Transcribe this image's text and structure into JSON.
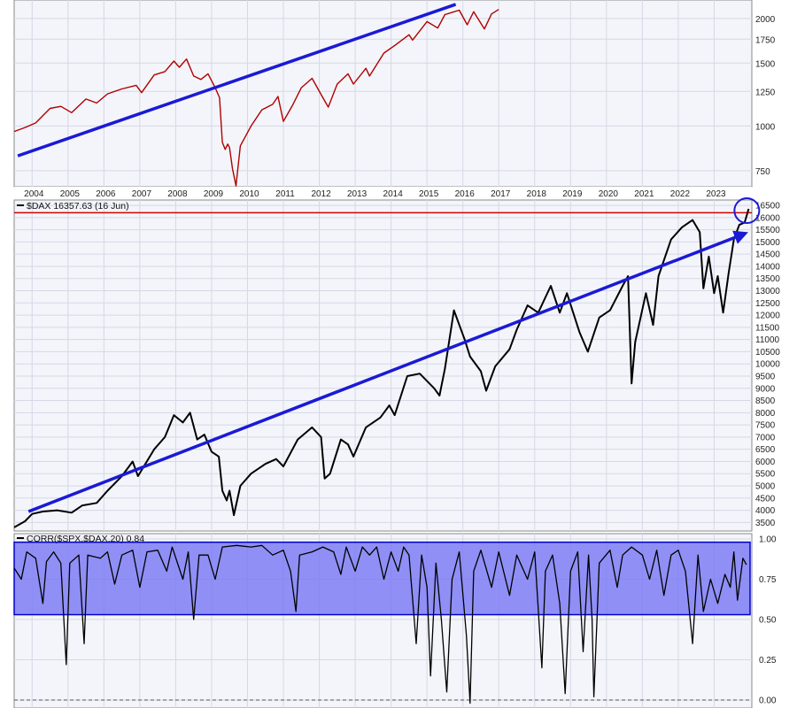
{
  "colors": {
    "panel_bg": "#f4f5fa",
    "grid": "#d5d8e6",
    "axis": "#8a8a8a",
    "spx_line": "#b00000",
    "spx_overlay": "#2b2b2b",
    "dax_line": "#000000",
    "trend": "#1a1ad6",
    "resistance": "#d00000",
    "corr_band": "#7d7df5",
    "corr_band_border": "#0000cc",
    "corr_line": "#000000"
  },
  "chart_data": [
    {
      "id": "spx-panel",
      "type": "line",
      "title": "",
      "series": [
        {
          "values": [
            [
              2003.0,
              965
            ],
            [
              2003.3,
              990
            ],
            [
              2003.6,
              1020
            ],
            [
              2004.0,
              1120
            ],
            [
              2004.3,
              1135
            ],
            [
              2004.6,
              1090
            ],
            [
              2005.0,
              1190
            ],
            [
              2005.3,
              1160
            ],
            [
              2005.6,
              1230
            ],
            [
              2006.0,
              1270
            ],
            [
              2006.4,
              1300
            ],
            [
              2006.55,
              1240
            ],
            [
              2006.9,
              1390
            ],
            [
              2007.2,
              1420
            ],
            [
              2007.45,
              1520
            ],
            [
              2007.6,
              1460
            ],
            [
              2007.8,
              1540
            ],
            [
              2008.0,
              1380
            ],
            [
              2008.2,
              1350
            ],
            [
              2008.4,
              1400
            ],
            [
              2008.6,
              1280
            ],
            [
              2008.72,
              1200
            ],
            [
              2008.8,
              900
            ],
            [
              2008.88,
              860
            ],
            [
              2008.95,
              890
            ],
            [
              2009.0,
              870
            ],
            [
              2009.08,
              760
            ],
            [
              2009.18,
              680
            ],
            [
              2009.3,
              880
            ],
            [
              2009.6,
              1000
            ],
            [
              2009.9,
              1110
            ],
            [
              2010.2,
              1150
            ],
            [
              2010.35,
              1210
            ],
            [
              2010.5,
              1030
            ],
            [
              2010.75,
              1140
            ],
            [
              2011.0,
              1280
            ],
            [
              2011.3,
              1360
            ],
            [
              2011.6,
              1200
            ],
            [
              2011.75,
              1130
            ],
            [
              2012.0,
              1310
            ],
            [
              2012.3,
              1400
            ],
            [
              2012.45,
              1310
            ],
            [
              2012.8,
              1450
            ],
            [
              2012.9,
              1380
            ],
            [
              2013.3,
              1600
            ],
            [
              2013.6,
              1680
            ],
            [
              2014.0,
              1800
            ],
            [
              2014.1,
              1740
            ],
            [
              2014.5,
              1960
            ],
            [
              2014.8,
              1880
            ],
            [
              2015.0,
              2050
            ],
            [
              2015.4,
              2110
            ],
            [
              2015.62,
              1920
            ],
            [
              2015.8,
              2090
            ],
            [
              2016.1,
              1870
            ],
            [
              2016.3,
              2060
            ],
            [
              2016.5,
              2120
            ]
          ]
        }
      ],
      "x_ticks": [
        "2004",
        "2005",
        "2006",
        "2007",
        "2008",
        "2009",
        "2010",
        "2011",
        "2012",
        "2013",
        "2014",
        "2015",
        "2016",
        "2017",
        "2018",
        "2019",
        "2020",
        "2021",
        "2022",
        "2023"
      ],
      "y_ticks": [
        "2000",
        "1750",
        "1500",
        "1250",
        "1000",
        "750"
      ],
      "y_scale": "log",
      "trendline": [
        [
          2003.1,
          825
        ],
        [
          2015.3,
          2190
        ]
      ],
      "grid": true
    },
    {
      "id": "dax-panel",
      "type": "line",
      "legend": "$DAX 16357.63 (16 Jun)",
      "series": [
        {
          "values": [
            [
              2003.0,
              3300
            ],
            [
              2003.3,
              3550
            ],
            [
              2003.5,
              3850
            ],
            [
              2003.8,
              3950
            ],
            [
              2004.2,
              4000
            ],
            [
              2004.6,
              3900
            ],
            [
              2004.9,
              4200
            ],
            [
              2005.3,
              4300
            ],
            [
              2005.6,
              4800
            ],
            [
              2006.0,
              5400
            ],
            [
              2006.3,
              6000
            ],
            [
              2006.45,
              5400
            ],
            [
              2006.9,
              6500
            ],
            [
              2007.2,
              7000
            ],
            [
              2007.45,
              7900
            ],
            [
              2007.7,
              7600
            ],
            [
              2007.9,
              8000
            ],
            [
              2008.1,
              6900
            ],
            [
              2008.3,
              7100
            ],
            [
              2008.5,
              6400
            ],
            [
              2008.7,
              6200
            ],
            [
              2008.8,
              4800
            ],
            [
              2008.92,
              4400
            ],
            [
              2009.0,
              4800
            ],
            [
              2009.12,
              3800
            ],
            [
              2009.3,
              5000
            ],
            [
              2009.6,
              5500
            ],
            [
              2010.0,
              5900
            ],
            [
              2010.3,
              6100
            ],
            [
              2010.5,
              5800
            ],
            [
              2010.9,
              6900
            ],
            [
              2011.3,
              7400
            ],
            [
              2011.55,
              7000
            ],
            [
              2011.65,
              5300
            ],
            [
              2011.8,
              5500
            ],
            [
              2012.1,
              6900
            ],
            [
              2012.3,
              6700
            ],
            [
              2012.45,
              6200
            ],
            [
              2012.8,
              7400
            ],
            [
              2013.2,
              7800
            ],
            [
              2013.45,
              8300
            ],
            [
              2013.6,
              7900
            ],
            [
              2013.95,
              9500
            ],
            [
              2014.3,
              9600
            ],
            [
              2014.7,
              9000
            ],
            [
              2014.85,
              8700
            ],
            [
              2015.0,
              9800
            ],
            [
              2015.25,
              12200
            ],
            [
              2015.55,
              11000
            ],
            [
              2015.7,
              10300
            ],
            [
              2016.0,
              9700
            ],
            [
              2016.15,
              8900
            ],
            [
              2016.4,
              9900
            ],
            [
              2016.8,
              10600
            ],
            [
              2017.0,
              11400
            ],
            [
              2017.3,
              12400
            ],
            [
              2017.6,
              12100
            ],
            [
              2017.95,
              13200
            ],
            [
              2018.2,
              12100
            ],
            [
              2018.4,
              12900
            ],
            [
              2018.75,
              11300
            ],
            [
              2018.98,
              10500
            ],
            [
              2019.3,
              11900
            ],
            [
              2019.6,
              12200
            ],
            [
              2019.95,
              13200
            ],
            [
              2020.1,
              13600
            ],
            [
              2020.2,
              9200
            ],
            [
              2020.3,
              10900
            ],
            [
              2020.6,
              12900
            ],
            [
              2020.8,
              11600
            ],
            [
              2020.95,
              13600
            ],
            [
              2021.3,
              15100
            ],
            [
              2021.6,
              15600
            ],
            [
              2021.9,
              15900
            ],
            [
              2022.1,
              15400
            ],
            [
              2022.2,
              13100
            ],
            [
              2022.35,
              14400
            ],
            [
              2022.5,
              12900
            ],
            [
              2022.6,
              13600
            ],
            [
              2022.75,
              12100
            ],
            [
              2022.9,
              13700
            ],
            [
              2023.05,
              15100
            ],
            [
              2023.2,
              15700
            ],
            [
              2023.35,
              15800
            ],
            [
              2023.46,
              16357
            ]
          ]
        }
      ],
      "y_ticks": [
        "16500",
        "16000",
        "15500",
        "15000",
        "14500",
        "14000",
        "13500",
        "13000",
        "12500",
        "12000",
        "11500",
        "11000",
        "10500",
        "10000",
        "9500",
        "9000",
        "8500",
        "8000",
        "7500",
        "7000",
        "6500",
        "6000",
        "5500",
        "5000",
        "4500",
        "4000",
        "3500"
      ],
      "resistance_level": 16200,
      "trendline": [
        [
          2003.4,
          3950
        ],
        [
          2023.45,
          15400
        ]
      ],
      "grid": true
    },
    {
      "id": "corr-panel",
      "type": "line",
      "legend": "CORR($SPX,$DAX,20) 0.84",
      "series": [
        {
          "values": [
            [
              2003.0,
              0.82
            ],
            [
              2003.2,
              0.75
            ],
            [
              2003.35,
              0.92
            ],
            [
              2003.6,
              0.88
            ],
            [
              2003.8,
              0.6
            ],
            [
              2003.9,
              0.86
            ],
            [
              2004.1,
              0.92
            ],
            [
              2004.3,
              0.85
            ],
            [
              2004.45,
              0.22
            ],
            [
              2004.55,
              0.85
            ],
            [
              2004.8,
              0.9
            ],
            [
              2004.95,
              0.35
            ],
            [
              2005.05,
              0.9
            ],
            [
              2005.4,
              0.88
            ],
            [
              2005.6,
              0.92
            ],
            [
              2005.8,
              0.72
            ],
            [
              2006.0,
              0.9
            ],
            [
              2006.3,
              0.93
            ],
            [
              2006.5,
              0.7
            ],
            [
              2006.7,
              0.92
            ],
            [
              2007.0,
              0.93
            ],
            [
              2007.25,
              0.8
            ],
            [
              2007.4,
              0.95
            ],
            [
              2007.7,
              0.75
            ],
            [
              2007.85,
              0.92
            ],
            [
              2008.0,
              0.5
            ],
            [
              2008.15,
              0.9
            ],
            [
              2008.4,
              0.9
            ],
            [
              2008.6,
              0.75
            ],
            [
              2008.8,
              0.95
            ],
            [
              2009.2,
              0.96
            ],
            [
              2009.6,
              0.95
            ],
            [
              2009.9,
              0.96
            ],
            [
              2010.2,
              0.9
            ],
            [
              2010.5,
              0.93
            ],
            [
              2010.7,
              0.8
            ],
            [
              2010.85,
              0.55
            ],
            [
              2010.95,
              0.9
            ],
            [
              2011.3,
              0.92
            ],
            [
              2011.6,
              0.95
            ],
            [
              2011.9,
              0.92
            ],
            [
              2012.1,
              0.78
            ],
            [
              2012.25,
              0.95
            ],
            [
              2012.5,
              0.8
            ],
            [
              2012.7,
              0.95
            ],
            [
              2012.9,
              0.9
            ],
            [
              2013.1,
              0.95
            ],
            [
              2013.3,
              0.75
            ],
            [
              2013.5,
              0.92
            ],
            [
              2013.7,
              0.8
            ],
            [
              2013.85,
              0.95
            ],
            [
              2014.0,
              0.9
            ],
            [
              2014.2,
              0.35
            ],
            [
              2014.35,
              0.9
            ],
            [
              2014.5,
              0.7
            ],
            [
              2014.6,
              0.15
            ],
            [
              2014.75,
              0.85
            ],
            [
              2014.9,
              0.5
            ],
            [
              2015.05,
              0.05
            ],
            [
              2015.2,
              0.75
            ],
            [
              2015.4,
              0.92
            ],
            [
              2015.6,
              0.4
            ],
            [
              2015.7,
              -0.02
            ],
            [
              2015.8,
              0.8
            ],
            [
              2016.0,
              0.93
            ],
            [
              2016.3,
              0.7
            ],
            [
              2016.5,
              0.92
            ],
            [
              2016.8,
              0.65
            ],
            [
              2017.0,
              0.9
            ],
            [
              2017.3,
              0.75
            ],
            [
              2017.5,
              0.92
            ],
            [
              2017.7,
              0.2
            ],
            [
              2017.8,
              0.8
            ],
            [
              2018.0,
              0.9
            ],
            [
              2018.2,
              0.6
            ],
            [
              2018.35,
              0.04
            ],
            [
              2018.5,
              0.8
            ],
            [
              2018.7,
              0.92
            ],
            [
              2018.85,
              0.3
            ],
            [
              2019.0,
              0.9
            ],
            [
              2019.1,
              0.5
            ],
            [
              2019.15,
              0.02
            ],
            [
              2019.3,
              0.85
            ],
            [
              2019.6,
              0.93
            ],
            [
              2019.8,
              0.7
            ],
            [
              2019.95,
              0.9
            ],
            [
              2020.2,
              0.95
            ],
            [
              2020.5,
              0.9
            ],
            [
              2020.7,
              0.75
            ],
            [
              2020.9,
              0.93
            ],
            [
              2021.1,
              0.65
            ],
            [
              2021.3,
              0.9
            ],
            [
              2021.5,
              0.93
            ],
            [
              2021.7,
              0.8
            ],
            [
              2021.9,
              0.35
            ],
            [
              2022.05,
              0.9
            ],
            [
              2022.2,
              0.55
            ],
            [
              2022.4,
              0.75
            ],
            [
              2022.6,
              0.6
            ],
            [
              2022.8,
              0.78
            ],
            [
              2022.95,
              0.7
            ],
            [
              2023.05,
              0.92
            ],
            [
              2023.15,
              0.62
            ],
            [
              2023.3,
              0.88
            ],
            [
              2023.4,
              0.84
            ]
          ]
        }
      ],
      "y_ticks": [
        "1.00",
        "0.75",
        "0.50",
        "0.25",
        "0.00"
      ],
      "band": [
        0.53,
        0.98
      ],
      "grid": true
    }
  ]
}
